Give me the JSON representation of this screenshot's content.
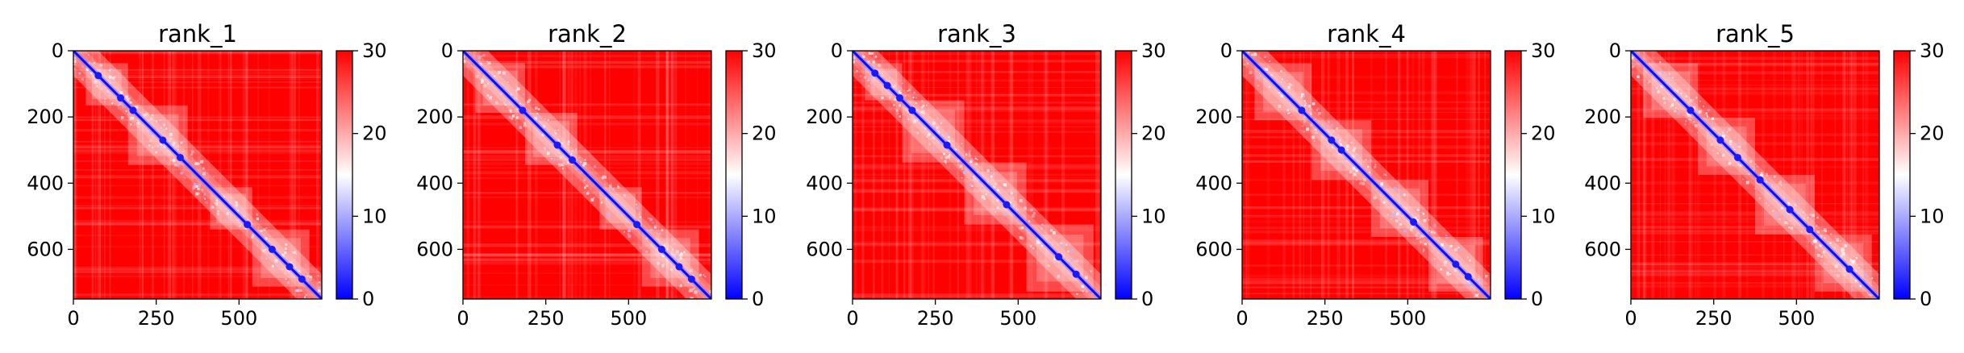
{
  "chart_data": [
    {
      "type": "heatmap",
      "title": "rank_1",
      "x_range": [
        0,
        750
      ],
      "y_range": [
        0,
        750
      ],
      "y_inverted": true,
      "x_ticks": [
        {
          "value": 0,
          "label": "0"
        },
        {
          "value": 250,
          "label": "250"
        },
        {
          "value": 500,
          "label": "500"
        }
      ],
      "y_ticks": [
        {
          "value": 0,
          "label": "0"
        },
        {
          "value": 200,
          "label": "200"
        },
        {
          "value": 400,
          "label": "400"
        },
        {
          "value": 600,
          "label": "600"
        }
      ],
      "colorbar": {
        "range": [
          0,
          30
        ],
        "colormap": "bwr",
        "ticks": [
          {
            "value": 0,
            "label": "0"
          },
          {
            "value": 10,
            "label": "10"
          },
          {
            "value": 20,
            "label": "20"
          },
          {
            "value": 30,
            "label": "30"
          }
        ]
      }
    },
    {
      "type": "heatmap",
      "title": "rank_2",
      "x_range": [
        0,
        750
      ],
      "y_range": [
        0,
        750
      ],
      "y_inverted": true,
      "x_ticks": [
        {
          "value": 0,
          "label": "0"
        },
        {
          "value": 250,
          "label": "250"
        },
        {
          "value": 500,
          "label": "500"
        }
      ],
      "y_ticks": [
        {
          "value": 0,
          "label": "0"
        },
        {
          "value": 200,
          "label": "200"
        },
        {
          "value": 400,
          "label": "400"
        },
        {
          "value": 600,
          "label": "600"
        }
      ],
      "colorbar": {
        "range": [
          0,
          30
        ],
        "colormap": "bwr",
        "ticks": [
          {
            "value": 0,
            "label": "0"
          },
          {
            "value": 10,
            "label": "10"
          },
          {
            "value": 20,
            "label": "20"
          },
          {
            "value": 30,
            "label": "30"
          }
        ]
      }
    },
    {
      "type": "heatmap",
      "title": "rank_3",
      "x_range": [
        0,
        750
      ],
      "y_range": [
        0,
        750
      ],
      "y_inverted": true,
      "x_ticks": [
        {
          "value": 0,
          "label": "0"
        },
        {
          "value": 250,
          "label": "250"
        },
        {
          "value": 500,
          "label": "500"
        }
      ],
      "y_ticks": [
        {
          "value": 0,
          "label": "0"
        },
        {
          "value": 200,
          "label": "200"
        },
        {
          "value": 400,
          "label": "400"
        },
        {
          "value": 600,
          "label": "600"
        }
      ],
      "colorbar": {
        "range": [
          0,
          30
        ],
        "colormap": "bwr",
        "ticks": [
          {
            "value": 0,
            "label": "0"
          },
          {
            "value": 10,
            "label": "10"
          },
          {
            "value": 20,
            "label": "20"
          },
          {
            "value": 30,
            "label": "30"
          }
        ]
      }
    },
    {
      "type": "heatmap",
      "title": "rank_4",
      "x_range": [
        0,
        750
      ],
      "y_range": [
        0,
        750
      ],
      "y_inverted": true,
      "x_ticks": [
        {
          "value": 0,
          "label": "0"
        },
        {
          "value": 250,
          "label": "250"
        },
        {
          "value": 500,
          "label": "500"
        }
      ],
      "y_ticks": [
        {
          "value": 0,
          "label": "0"
        },
        {
          "value": 200,
          "label": "200"
        },
        {
          "value": 400,
          "label": "400"
        },
        {
          "value": 600,
          "label": "600"
        }
      ],
      "colorbar": {
        "range": [
          0,
          30
        ],
        "colormap": "bwr",
        "ticks": [
          {
            "value": 0,
            "label": "0"
          },
          {
            "value": 10,
            "label": "10"
          },
          {
            "value": 20,
            "label": "20"
          },
          {
            "value": 30,
            "label": "30"
          }
        ]
      }
    },
    {
      "type": "heatmap",
      "title": "rank_5",
      "x_range": [
        0,
        750
      ],
      "y_range": [
        0,
        750
      ],
      "y_inverted": true,
      "x_ticks": [
        {
          "value": 0,
          "label": "0"
        },
        {
          "value": 250,
          "label": "250"
        },
        {
          "value": 500,
          "label": "500"
        }
      ],
      "y_ticks": [
        {
          "value": 0,
          "label": "0"
        },
        {
          "value": 200,
          "label": "200"
        },
        {
          "value": 400,
          "label": "400"
        },
        {
          "value": 600,
          "label": "600"
        }
      ],
      "colorbar": {
        "range": [
          0,
          30
        ],
        "colormap": "bwr",
        "ticks": [
          {
            "value": 0,
            "label": "0"
          },
          {
            "value": 10,
            "label": "10"
          },
          {
            "value": 20,
            "label": "20"
          },
          {
            "value": 30,
            "label": "30"
          }
        ]
      }
    }
  ]
}
